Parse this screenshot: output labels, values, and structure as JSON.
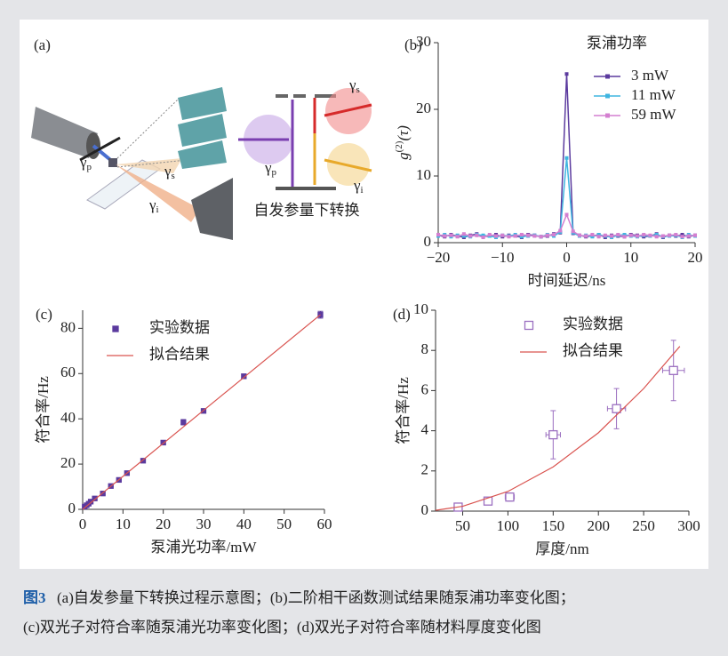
{
  "diagram": {
    "panel": "(a)",
    "labels": [
      {
        "main": "γ",
        "sub": "p"
      },
      {
        "main": "γ",
        "sub": "s"
      },
      {
        "main": "γ",
        "sub": "i"
      },
      {
        "main": "γ",
        "sub": "s"
      },
      {
        "main": "γ",
        "sub": "p"
      },
      {
        "main": "γ",
        "sub": "i"
      }
    ],
    "title": "自发参量下转换"
  },
  "chart_data": [
    {
      "type": "line",
      "panel": "(b)",
      "xlabel": "时间延迟/ns",
      "ylabel": [
        "g",
        "(2)",
        "(τ)"
      ],
      "legend_title": "泵浦功率",
      "x": [
        -20,
        -19,
        -18,
        -17,
        -16,
        -15,
        -14,
        -13,
        -12,
        -11,
        -10,
        -9,
        -8,
        -7,
        -6,
        -5,
        -4,
        -3,
        -2,
        -1,
        0,
        1,
        2,
        3,
        4,
        5,
        6,
        7,
        8,
        9,
        10,
        11,
        12,
        13,
        14,
        15,
        16,
        17,
        18,
        19,
        20
      ],
      "series": [
        {
          "name": "3 mW",
          "color": "#5b3a9e",
          "values": [
            1.1,
            0.9,
            1.2,
            1.0,
            0.8,
            1.1,
            1.3,
            0.9,
            1.0,
            1.2,
            0.9,
            1.1,
            1.0,
            0.8,
            1.2,
            1.1,
            0.9,
            1.0,
            1.3,
            1.5,
            25.3,
            1.4,
            1.1,
            0.9,
            1.0,
            1.2,
            0.8,
            1.1,
            1.0,
            0.9,
            1.2,
            1.1,
            0.9,
            1.0,
            1.3,
            0.8,
            1.1,
            1.0,
            1.2,
            0.9,
            1.1
          ]
        },
        {
          "name": "11 mW",
          "color": "#3fb5e0",
          "values": [
            1.0,
            1.2,
            0.9,
            1.1,
            1.0,
            0.9,
            1.2,
            1.1,
            1.0,
            0.8,
            1.1,
            1.0,
            1.2,
            0.9,
            1.0,
            1.1,
            0.9,
            1.2,
            1.0,
            1.6,
            12.7,
            1.5,
            1.0,
            1.1,
            0.9,
            1.2,
            1.0,
            0.8,
            1.1,
            1.2,
            1.0,
            0.9,
            1.1,
            1.0,
            1.2,
            0.9,
            1.0,
            1.1,
            0.8,
            1.2,
            1.0
          ]
        },
        {
          "name": "59 mW",
          "color": "#d47fd0",
          "values": [
            1.2,
            1.0,
            1.1,
            0.9,
            1.3,
            1.0,
            1.1,
            0.8,
            1.2,
            1.0,
            1.1,
            0.9,
            1.0,
            1.2,
            1.1,
            1.0,
            0.9,
            1.1,
            1.2,
            1.8,
            4.2,
            1.7,
            1.1,
            1.0,
            1.2,
            0.9,
            1.1,
            1.0,
            1.2,
            0.9,
            1.1,
            1.0,
            1.2,
            1.1,
            0.9,
            1.0,
            1.1,
            1.2,
            0.9,
            1.0,
            1.1
          ]
        }
      ],
      "xlim": [
        -20,
        20
      ],
      "xticks": [
        {
          "value": -20,
          "label": "−20"
        },
        {
          "value": -10,
          "label": "−10"
        },
        0,
        10,
        20
      ],
      "ylim": [
        0,
        30
      ],
      "yticks": [
        0,
        10,
        20,
        30
      ]
    },
    {
      "type": "scatter",
      "panel": "(c)",
      "xlabel": "泵浦光功率/mW",
      "ylabel": [
        "符合率/Hz"
      ],
      "series": [
        {
          "name": "实验数据",
          "color": "#5b3a9e",
          "marker": "filled",
          "x": [
            0.5,
            1,
            1.5,
            2,
            3,
            5,
            7,
            9,
            11,
            15,
            20,
            25,
            30,
            40,
            59
          ],
          "values": [
            1.2,
            1.8,
            2.5,
            3.4,
            4.8,
            7.0,
            10.3,
            13,
            16,
            21.5,
            29.5,
            38.5,
            43.5,
            58.8,
            86
          ],
          "yerr": [
            0.3,
            0.3,
            0.3,
            0.3,
            0.3,
            0.4,
            0.4,
            0.4,
            0.5,
            0.5,
            0.8,
            1.2,
            0.6,
            1.0,
            1.5
          ]
        },
        {
          "name": "拟合结果",
          "color": "#d9534f",
          "x": [
            0,
            59
          ],
          "values": [
            0,
            86
          ]
        }
      ],
      "xlim": [
        0,
        60
      ],
      "xticks": [
        0,
        10,
        20,
        30,
        40,
        50,
        60
      ],
      "ylim": [
        0,
        88
      ],
      "yticks": [
        0,
        20,
        40,
        60,
        80
      ]
    },
    {
      "type": "scatter",
      "panel": "(d)",
      "xlabel": "厚度/nm",
      "ylabel": [
        "符合率/Hz"
      ],
      "series": [
        {
          "name": "实验数据",
          "color": "#9b6fc0",
          "marker": "open",
          "x": [
            45,
            78,
            102,
            150,
            220,
            283
          ],
          "values": [
            0.2,
            0.5,
            0.7,
            3.8,
            5.1,
            7.0
          ],
          "yerr": [
            0.1,
            0.15,
            0.2,
            1.2,
            1.0,
            1.5
          ],
          "xerr": [
            3,
            4,
            5,
            8,
            10,
            12
          ]
        },
        {
          "name": "拟合结果",
          "color": "#d9534f",
          "x": [
            20,
            50,
            100,
            150,
            200,
            250,
            290
          ],
          "values": [
            0.04,
            0.24,
            0.98,
            2.2,
            3.9,
            6.1,
            8.2
          ]
        }
      ],
      "xlim": [
        20,
        300
      ],
      "xticks": [
        50,
        100,
        150,
        200,
        250,
        300
      ],
      "ylim": [
        0,
        10
      ],
      "yticks": [
        0,
        2,
        4,
        6,
        8,
        10
      ]
    }
  ],
  "caption": {
    "label": "图3",
    "lines": [
      "(a)自发参量下转换过程示意图；(b)二阶相干函数测试结果随泵浦功率变化图；",
      "(c)双光子对符合率随泵浦光功率变化图；(d)双光子对符合率随材料厚度变化图"
    ]
  }
}
